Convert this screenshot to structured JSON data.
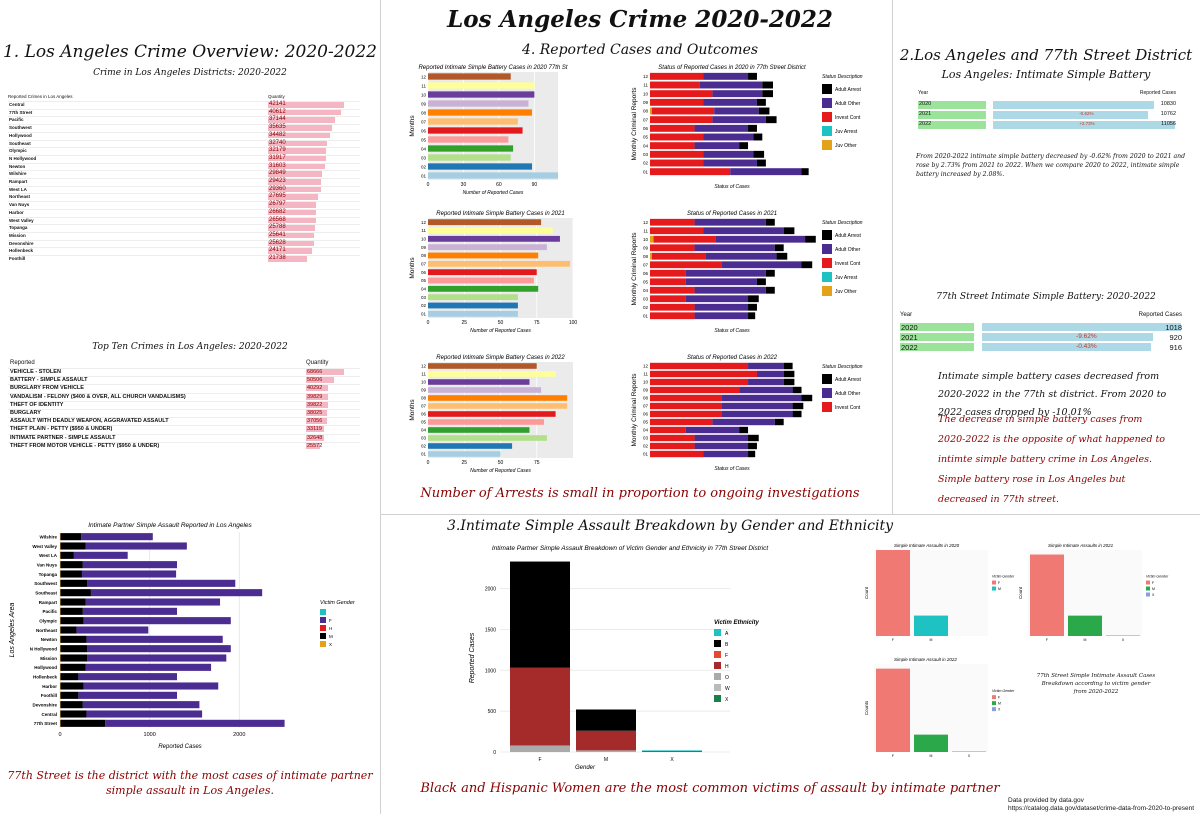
{
  "main_title": "Los Angeles Crime 2020-2022",
  "footer": {
    "line1": "Data provided by data.gov",
    "line2": "https://catalog.data.gov/dataset/crime-data-from-2020-to-present"
  },
  "colors": {
    "pink": "#f4b6c2",
    "green": "#9be39b",
    "blue": "#add8e6",
    "red": "#e41a1c",
    "purple": "#4b2c91",
    "darkred": "#a52a2a",
    "teal": "#1fc2c2"
  },
  "s1": {
    "title": "1. Los Angeles Crime Overview: 2020-2022",
    "subtitle": "Crime in Los Angeles Districts: 2020-2022",
    "col1": "Reported Crimes in Los Angeles",
    "col2": "Quantity",
    "top_title": "Top Ten Crimes in Los Angeles: 2020-2022",
    "top_col1": "Reported",
    "top_col2": "Quantity",
    "top_rows": [
      {
        "name": "VEHICLE - STOLEN",
        "value": 68666
      },
      {
        "name": "BATTERY - SIMPLE ASSAULT",
        "value": 50506
      },
      {
        "name": "BURGLARY FROM VEHICLE",
        "value": 40292
      },
      {
        "name": "VANDALISM - FELONY ($400 & OVER, ALL CHURCH VANDALISMS)",
        "value": 39829
      },
      {
        "name": "THEFT OF IDENTITY",
        "value": 39822
      },
      {
        "name": "BURGLARY",
        "value": 38025
      },
      {
        "name": "ASSAULT WITH DEADLY WEAPON, AGGRAVATED ASSAULT",
        "value": 37056
      },
      {
        "name": "THEFT PLAIN - PETTY ($950 & UNDER)",
        "value": 33119
      },
      {
        "name": "INTIMATE PARTNER - SIMPLE ASSAULT",
        "value": 32648
      },
      {
        "name": "THEFT FROM MOTOR VEHICLE - PETTY ($950 & UNDER)",
        "value": 25572
      }
    ]
  },
  "s2": {
    "title": "2.Los Angeles and 77th Street District",
    "subtitle": "Los Angeles: Intimate Simple Battery",
    "col1": "Year",
    "col2": "Reported Cases",
    "la_rows": [
      {
        "year": "2020",
        "change": "",
        "value": 10830
      },
      {
        "year": "2021",
        "change": "-0.62%",
        "value": 10762
      },
      {
        "year": "2022",
        "change": "+2.73%",
        "value": 11056
      }
    ],
    "la_note": "From 2020-2022 intimate simple battery decreased by -0.62% from 2020 to 2021 and rose by 2.73% from 2021 to 2022. When we compare 2020 to 2022, intimate simple battery increased by 2.08%.",
    "st_title": "77th Street Intimate Simple Battery: 2020-2022",
    "st_rows": [
      {
        "year": "2020",
        "change": "",
        "value": 1018
      },
      {
        "year": "2021",
        "change": "-9.62%",
        "value": 920
      },
      {
        "year": "2022",
        "change": "-0.43%",
        "value": 916
      }
    ],
    "st_note1": "Intimate simple battery cases decreased from 2020-2022 in the 77th st district. From 2020 to 2022 cases dropped by -10.01%",
    "st_note2": "The decrease in simple battery cases from 2020-2022 is the opposite of what happened to intimte simple battery crime in Los Angeles. Simple battery rose in Los Angeles but decreased in 77th street."
  },
  "s3": {
    "title": "3.Intimate Simple Assault Breakdown by Gender and Ethnicity",
    "footer_note": "Black and Hispanic Women are the most common victims of assault by intimate partner",
    "side_note": "77th Street Simple Intimate Assault Cases Breakdown according to victim gender from 2020-2022"
  },
  "s4": {
    "title": "4. Reported Cases and Outcomes",
    "footer_note": "Number of Arrests is small in proportion to ongoing investigations"
  },
  "left_note": "77th Street is the district with the most cases of intimate partner simple assault in Los Angeles.",
  "chart_data": [
    {
      "type": "table",
      "title": "Crime in Los Angeles Districts: 2020-2022",
      "categories": [
        "Central",
        "77th Street",
        "Pacific",
        "Southwest",
        "Hollywood",
        "Southeast",
        "Olympic",
        "N Hollywood",
        "Newton",
        "Wilshire",
        "Rampart",
        "West LA",
        "Northeast",
        "Van Nuys",
        "Harbor",
        "West Valley",
        "Topanga",
        "Mission",
        "Devonshire",
        "Hollenbeck",
        "Foothill"
      ],
      "values": [
        42141,
        40612,
        37144,
        35635,
        34482,
        32740,
        32179,
        31917,
        31603,
        29849,
        29423,
        29360,
        27695,
        26797,
        26682,
        26568,
        25788,
        25641,
        25628,
        24171,
        21738
      ]
    },
    {
      "type": "bar",
      "title": "Reported Intimate Simple Battery Cases in 2020 77th St",
      "xlabel": "Number of Reported Cases",
      "ylabel": "Months",
      "categories": [
        "01",
        "02",
        "03",
        "04",
        "05",
        "06",
        "07",
        "08",
        "09",
        "10",
        "11",
        "12"
      ],
      "values": [
        110,
        88,
        70,
        72,
        68,
        80,
        76,
        88,
        85,
        90,
        90,
        70
      ],
      "xlim": [
        0,
        110
      ],
      "xticks": [
        0,
        30,
        60,
        90
      ]
    },
    {
      "type": "bar",
      "title": "Reported Intimate Simple Battery Cases in 2021",
      "xlabel": "Number of Reported Cases",
      "ylabel": "Months",
      "categories": [
        "01",
        "02",
        "03",
        "04",
        "05",
        "06",
        "07",
        "08",
        "09",
        "10",
        "11",
        "12"
      ],
      "values": [
        62,
        62,
        62,
        76,
        73,
        75,
        98,
        76,
        82,
        91,
        86,
        78
      ],
      "xlim": [
        0,
        100
      ],
      "xticks": [
        0,
        25,
        50,
        75,
        100
      ]
    },
    {
      "type": "bar",
      "title": "Reported Intimate Simple Battery Cases in 2022",
      "xlabel": "Number of Reported Cases",
      "ylabel": "Months",
      "categories": [
        "01",
        "02",
        "03",
        "04",
        "05",
        "06",
        "07",
        "08",
        "09",
        "10",
        "11",
        "12"
      ],
      "values": [
        50,
        58,
        82,
        70,
        80,
        88,
        96,
        96,
        78,
        70,
        88,
        75
      ],
      "xlim": [
        0,
        100
      ],
      "xticks": [
        0,
        25,
        50,
        75
      ]
    },
    {
      "type": "bar",
      "title": "Status of Reported Cases in 2020 in 77th Street District",
      "xlabel": "Status of Cases",
      "ylabel": "Monthly Criminal Reports",
      "legend_title": "Status Description",
      "categories": [
        "01",
        "02",
        "03",
        "04",
        "05",
        "06",
        "07",
        "08",
        "09",
        "10",
        "11",
        "12"
      ],
      "series": [
        {
          "name": "Juv Other",
          "values": [
            0,
            0,
            0,
            0,
            0,
            0,
            0,
            1,
            0,
            0,
            0,
            0
          ]
        },
        {
          "name": "Juv Arrest",
          "values": [
            0,
            0,
            0,
            0,
            0,
            0,
            0,
            0,
            0,
            0,
            0,
            0
          ]
        },
        {
          "name": "Invest Cont",
          "values": [
            45,
            30,
            30,
            25,
            30,
            25,
            35,
            35,
            30,
            35,
            28,
            30
          ]
        },
        {
          "name": "Adult Other",
          "values": [
            40,
            30,
            28,
            25,
            28,
            30,
            30,
            25,
            30,
            28,
            35,
            25
          ]
        },
        {
          "name": "Adult Arrest",
          "values": [
            4,
            5,
            6,
            5,
            5,
            5,
            6,
            6,
            5,
            6,
            6,
            5
          ]
        }
      ]
    },
    {
      "type": "bar",
      "title": "Status of Reported Cases in 2021",
      "xlabel": "Status of Cases",
      "ylabel": "Monthly Criminal Reports",
      "legend_title": "Status Description",
      "categories": [
        "01",
        "02",
        "03",
        "04",
        "05",
        "06",
        "07",
        "08",
        "09",
        "10",
        "11",
        "12"
      ],
      "series": [
        {
          "name": "Juv Other",
          "values": [
            0,
            0,
            0,
            0,
            0,
            0,
            0,
            1,
            0,
            2,
            0,
            0
          ]
        },
        {
          "name": "Juv Arrest",
          "values": [
            0,
            0,
            0,
            0,
            0,
            0,
            0,
            0,
            0,
            0,
            0,
            0
          ]
        },
        {
          "name": "Invest Cont",
          "values": [
            25,
            25,
            20,
            25,
            20,
            20,
            40,
            30,
            25,
            35,
            30,
            25
          ]
        },
        {
          "name": "Adult Other",
          "values": [
            30,
            30,
            35,
            40,
            40,
            45,
            45,
            40,
            45,
            50,
            45,
            40
          ]
        },
        {
          "name": "Adult Arrest",
          "values": [
            4,
            5,
            6,
            5,
            5,
            5,
            6,
            6,
            5,
            6,
            6,
            5
          ]
        }
      ]
    },
    {
      "type": "bar",
      "title": "Status of Reported Cases in 2022",
      "xlabel": "Status of Cases",
      "ylabel": "Monthly Criminal Reports",
      "legend_title": "Status Description",
      "categories": [
        "01",
        "02",
        "03",
        "04",
        "05",
        "06",
        "07",
        "08",
        "09",
        "10",
        "11",
        "12"
      ],
      "series": [
        {
          "name": "Invest Cont",
          "values": [
            30,
            25,
            25,
            20,
            35,
            40,
            40,
            40,
            50,
            55,
            60,
            55
          ]
        },
        {
          "name": "Adult Other",
          "values": [
            25,
            30,
            30,
            30,
            35,
            40,
            40,
            45,
            30,
            20,
            15,
            20
          ]
        },
        {
          "name": "Adult Arrest",
          "values": [
            4,
            5,
            6,
            5,
            5,
            5,
            6,
            6,
            5,
            6,
            6,
            5
          ]
        }
      ]
    },
    {
      "type": "bar",
      "title": "Intimate Partner Simple Assault Reported in Los Angeles",
      "xlabel": "Reported Cases",
      "ylabel": "Los Angeles Area",
      "legend_title": "Victim Gender",
      "categories": [
        "Wilshire",
        "West Valley",
        "West LA",
        "Van Nuys",
        "Topanga",
        "Southwest",
        "Southeast",
        "Rampart",
        "Pacific",
        "Olympic",
        "Northeast",
        "Newton",
        "N Hollywood",
        "Mission",
        "Hollywood",
        "Hollenbeck",
        "Harbor",
        "Foothill",
        "Devonshire",
        "Central",
        "77th Street"
      ],
      "series": [
        {
          "name": "X",
          "values": [
            5,
            5,
            5,
            5,
            5,
            5,
            5,
            5,
            5,
            5,
            5,
            5,
            5,
            5,
            5,
            5,
            5,
            5,
            5,
            5,
            5
          ]
        },
        {
          "name": "M",
          "values": [
            230,
            280,
            150,
            250,
            240,
            300,
            340,
            280,
            250,
            260,
            180,
            290,
            300,
            300,
            280,
            200,
            260,
            200,
            250,
            290,
            500
          ]
        },
        {
          "name": "F",
          "values": [
            800,
            1130,
            600,
            1050,
            1050,
            1650,
            1910,
            1500,
            1050,
            1640,
            800,
            1520,
            1600,
            1550,
            1400,
            1100,
            1500,
            1100,
            1300,
            1290,
            2000
          ]
        },
        {
          "name": "H",
          "values": [
            0,
            0,
            0,
            0,
            0,
            0,
            0,
            0,
            0,
            0,
            0,
            0,
            0,
            0,
            0,
            0,
            0,
            0,
            0,
            0,
            0
          ]
        }
      ],
      "xticks": [
        0,
        1000,
        2000
      ]
    },
    {
      "type": "bar",
      "title": "Intimate Partner Simple Assault Breakdown of Victim Gender and Ethnicity in 77th Street District",
      "xlabel": "Gender",
      "ylabel": "Reported Cases",
      "legend_title": "Victim Ethnicity",
      "categories": [
        "F",
        "M",
        "X"
      ],
      "series": [
        {
          "name": "O",
          "values": [
            80,
            20,
            0
          ]
        },
        {
          "name": "H",
          "values": [
            950,
            240,
            5
          ]
        },
        {
          "name": "B",
          "values": [
            1300,
            260,
            5
          ]
        },
        {
          "name": "X",
          "values": [
            0,
            0,
            10
          ]
        }
      ],
      "ylim": [
        0,
        2300
      ],
      "yticks": [
        0,
        500,
        1000,
        1500,
        2000
      ],
      "legend_items": [
        "A",
        "B",
        "F",
        "H",
        "O",
        "W",
        "X"
      ]
    },
    {
      "type": "bar",
      "title": "Simple Intimate Assaults in 2020",
      "categories": [
        "F",
        "M"
      ],
      "values": [
        800,
        190
      ],
      "xlabel": "",
      "ylabel": "Count",
      "legend_title": "Victim Gender",
      "legend_items": [
        "F",
        "M"
      ]
    },
    {
      "type": "bar",
      "title": "Simple Intimate Assaults in 2021",
      "categories": [
        "F",
        "M",
        "X"
      ],
      "values": [
        720,
        180,
        5
      ],
      "xlabel": "",
      "ylabel": "Count",
      "legend_title": "Victim Gender",
      "legend_items": [
        "F",
        "M",
        "X"
      ]
    },
    {
      "type": "bar",
      "title": "Simple Intimate Assault in 2022",
      "categories": [
        "F",
        "M",
        "X"
      ],
      "values": [
        720,
        150,
        5
      ],
      "xlabel": "",
      "ylabel": "Counts",
      "legend_title": "Victim Gender",
      "legend_items": [
        "F",
        "M",
        "X"
      ]
    }
  ]
}
